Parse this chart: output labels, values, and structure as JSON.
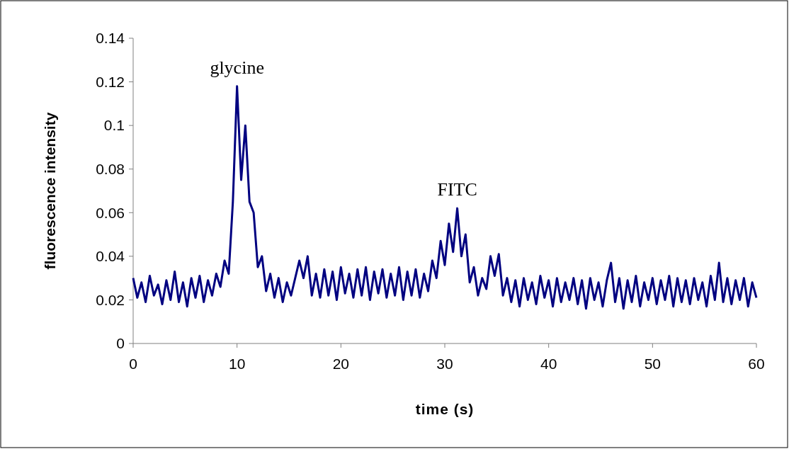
{
  "chart_data": {
    "type": "line",
    "xlabel": "time (s)",
    "ylabel": "fluorescence intensity",
    "xlim": [
      0,
      60
    ],
    "xticks": [
      0,
      10,
      20,
      30,
      40,
      50,
      60
    ],
    "ylim": [
      0,
      0.14
    ],
    "yticks": [
      0,
      0.02,
      0.04,
      0.06,
      0.08,
      0.1,
      0.12,
      0.14
    ],
    "grid": false,
    "marker": "none",
    "line_style": "solid",
    "annotations": [
      {
        "text": "glycine",
        "x": 10,
        "y": 0.118
      },
      {
        "text": "FITC",
        "x": 31.2,
        "y": 0.062
      }
    ],
    "series": [
      {
        "color": "#000080",
        "x": [
          0,
          0.4,
          0.8,
          1.2,
          1.6,
          2,
          2.4,
          2.8,
          3.2,
          3.6,
          4,
          4.4,
          4.8,
          5.2,
          5.6,
          6,
          6.4,
          6.8,
          7.2,
          7.6,
          8,
          8.4,
          8.8,
          9.2,
          9.6,
          10,
          10.4,
          10.8,
          11.2,
          11.6,
          12,
          12.4,
          12.8,
          13.2,
          13.6,
          14,
          14.4,
          14.8,
          15.2,
          15.6,
          16,
          16.4,
          16.8,
          17.2,
          17.6,
          18,
          18.4,
          18.8,
          19.2,
          19.6,
          20,
          20.4,
          20.8,
          21.2,
          21.6,
          22,
          22.4,
          22.8,
          23.2,
          23.6,
          24,
          24.4,
          24.8,
          25.2,
          25.6,
          26,
          26.4,
          26.8,
          27.2,
          27.6,
          28,
          28.4,
          28.8,
          29.2,
          29.6,
          30,
          30.4,
          30.8,
          31.2,
          31.6,
          32,
          32.4,
          32.8,
          33.2,
          33.6,
          34,
          34.4,
          34.8,
          35.2,
          35.6,
          36,
          36.4,
          36.8,
          37.2,
          37.6,
          38,
          38.4,
          38.8,
          39.2,
          39.6,
          40,
          40.4,
          40.8,
          41.2,
          41.6,
          42,
          42.4,
          42.8,
          43.2,
          43.6,
          44,
          44.4,
          44.8,
          45.2,
          45.6,
          46,
          46.4,
          46.8,
          47.2,
          47.6,
          48,
          48.4,
          48.8,
          49.2,
          49.6,
          50,
          50.4,
          50.8,
          51.2,
          51.6,
          52,
          52.4,
          52.8,
          53.2,
          53.6,
          54,
          54.4,
          54.8,
          55.2,
          55.6,
          56,
          56.4,
          56.8,
          57.2,
          57.6,
          58,
          58.4,
          58.8,
          59.2,
          59.6,
          60
        ],
        "values": [
          0.03,
          0.021,
          0.028,
          0.019,
          0.031,
          0.022,
          0.027,
          0.018,
          0.029,
          0.02,
          0.033,
          0.019,
          0.028,
          0.017,
          0.03,
          0.021,
          0.031,
          0.019,
          0.029,
          0.022,
          0.032,
          0.026,
          0.038,
          0.032,
          0.065,
          0.118,
          0.075,
          0.1,
          0.065,
          0.06,
          0.035,
          0.04,
          0.024,
          0.032,
          0.021,
          0.03,
          0.019,
          0.028,
          0.022,
          0.03,
          0.038,
          0.03,
          0.04,
          0.022,
          0.032,
          0.021,
          0.034,
          0.022,
          0.033,
          0.02,
          0.035,
          0.023,
          0.032,
          0.021,
          0.034,
          0.022,
          0.035,
          0.02,
          0.033,
          0.023,
          0.034,
          0.021,
          0.032,
          0.022,
          0.035,
          0.02,
          0.033,
          0.022,
          0.034,
          0.021,
          0.032,
          0.024,
          0.038,
          0.03,
          0.047,
          0.036,
          0.055,
          0.042,
          0.062,
          0.04,
          0.05,
          0.028,
          0.035,
          0.022,
          0.03,
          0.025,
          0.04,
          0.031,
          0.041,
          0.022,
          0.03,
          0.019,
          0.029,
          0.017,
          0.03,
          0.02,
          0.028,
          0.018,
          0.031,
          0.021,
          0.029,
          0.017,
          0.03,
          0.019,
          0.028,
          0.02,
          0.03,
          0.018,
          0.029,
          0.016,
          0.03,
          0.02,
          0.028,
          0.017,
          0.029,
          0.037,
          0.019,
          0.03,
          0.016,
          0.029,
          0.019,
          0.031,
          0.017,
          0.028,
          0.02,
          0.03,
          0.018,
          0.029,
          0.02,
          0.031,
          0.017,
          0.03,
          0.019,
          0.029,
          0.018,
          0.03,
          0.02,
          0.028,
          0.017,
          0.031,
          0.02,
          0.037,
          0.019,
          0.03,
          0.018,
          0.029,
          0.02,
          0.03,
          0.017,
          0.028,
          0.021
        ]
      }
    ]
  }
}
